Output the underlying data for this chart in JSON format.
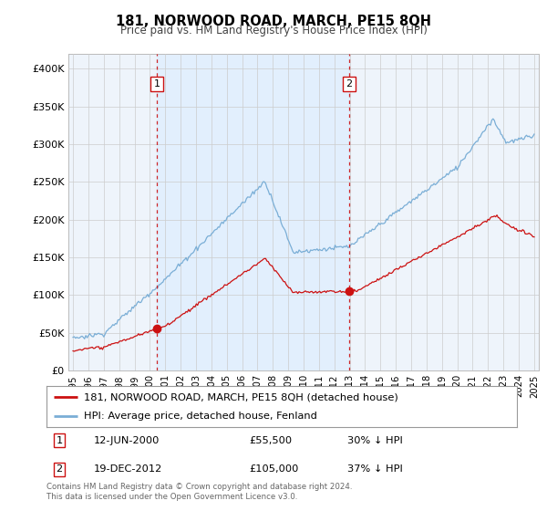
{
  "title": "181, NORWOOD ROAD, MARCH, PE15 8QH",
  "subtitle": "Price paid vs. HM Land Registry's House Price Index (HPI)",
  "ylabel_ticks": [
    "£0",
    "£50K",
    "£100K",
    "£150K",
    "£200K",
    "£250K",
    "£300K",
    "£350K",
    "£400K"
  ],
  "ytick_values": [
    0,
    50000,
    100000,
    150000,
    200000,
    250000,
    300000,
    350000,
    400000
  ],
  "ylim": [
    0,
    420000
  ],
  "xlim_start": 1994.7,
  "xlim_end": 2025.3,
  "hpi_color": "#7aaed6",
  "price_color": "#cc1111",
  "vline_color": "#cc1111",
  "shade_color": "#ddeeff",
  "marker1_date": 2000.45,
  "marker1_price": 55500,
  "marker2_date": 2012.96,
  "marker2_price": 105000,
  "legend_label_red": "181, NORWOOD ROAD, MARCH, PE15 8QH (detached house)",
  "legend_label_blue": "HPI: Average price, detached house, Fenland",
  "annotation1_num": "1",
  "annotation1_date": "12-JUN-2000",
  "annotation1_price": "£55,500",
  "annotation1_note": "30% ↓ HPI",
  "annotation2_num": "2",
  "annotation2_date": "19-DEC-2012",
  "annotation2_price": "£105,000",
  "annotation2_note": "37% ↓ HPI",
  "footer": "Contains HM Land Registry data © Crown copyright and database right 2024.\nThis data is licensed under the Open Government Licence v3.0.",
  "background_color": "#ffffff",
  "grid_color": "#cccccc",
  "chart_bg": "#eef4fb"
}
